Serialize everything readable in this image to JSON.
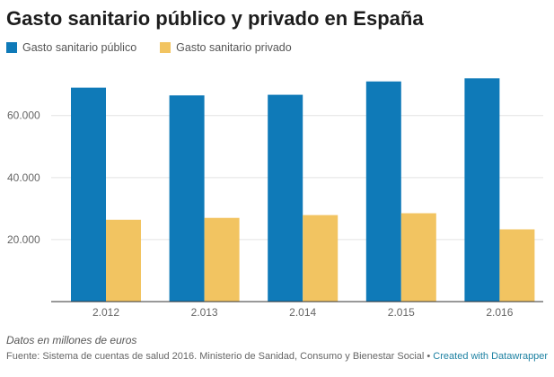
{
  "chart_data": {
    "type": "bar",
    "title": "Gasto sanitario público y privado en España",
    "categories": [
      "2.012",
      "2.013",
      "2.014",
      "2.015",
      "2.016"
    ],
    "series": [
      {
        "name": "Gasto sanitario público",
        "values": [
          69000,
          66500,
          66700,
          71000,
          72000
        ],
        "color": "#0f7ab8"
      },
      {
        "name": "Gasto sanitario privado",
        "values": [
          26400,
          27000,
          27900,
          28500,
          23300
        ],
        "color": "#f2c461"
      }
    ],
    "y_ticks": [
      20000,
      40000,
      60000
    ],
    "y_tick_labels": [
      "20.000",
      "40.000",
      "60.000"
    ],
    "ylim": [
      0,
      77000
    ],
    "grid": true,
    "legend_position": "top-left",
    "notes": "Datos en millones de euros",
    "source": "Fuente: Sistema de cuentas de salud 2016. Ministerio de Sanidad, Consumo y Bienestar Social • ",
    "credit": "Created with Datawrapper"
  }
}
